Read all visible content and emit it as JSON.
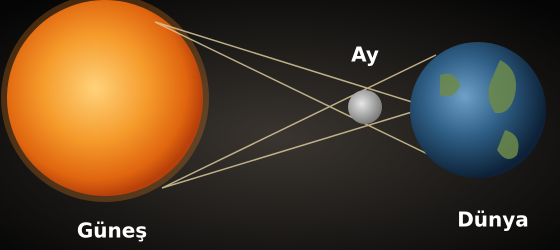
{
  "nodes": [
    {
      "label": "Güneş"
    },
    {
      "label": "Ay"
    },
    {
      "label": "Dünya"
    }
  ]
}
